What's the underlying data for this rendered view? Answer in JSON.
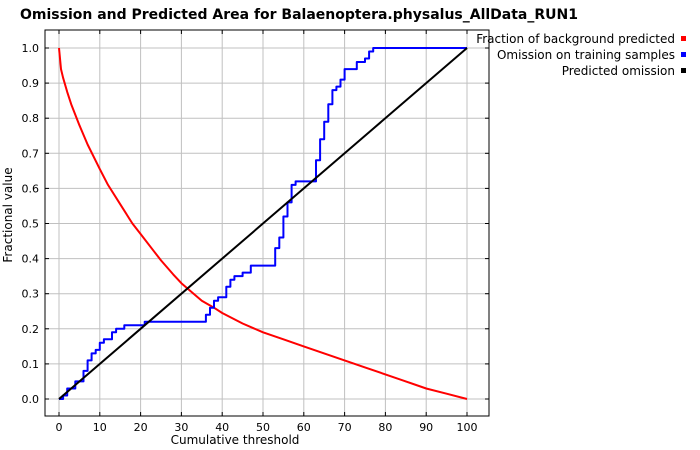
{
  "chart_data": {
    "type": "line",
    "title": "Omission and Predicted Area for Balaenoptera.physalus_AllData_RUN1",
    "xlabel": "Cumulative threshold",
    "ylabel": "Fractional value",
    "xlim": [
      0,
      100
    ],
    "ylim": [
      0,
      1
    ],
    "xticks": [
      "0",
      "10",
      "20",
      "30",
      "40",
      "50",
      "60",
      "70",
      "80",
      "90",
      "100"
    ],
    "yticks": [
      "0.0",
      "0.1",
      "0.2",
      "0.3",
      "0.4",
      "0.5",
      "0.6",
      "0.7",
      "0.8",
      "0.9",
      "1.0"
    ],
    "grid": true,
    "legend_position": "top-right, outside plot",
    "series": [
      {
        "name": "Fraction of background predicted",
        "color": "#ff0000",
        "x": [
          0,
          0.5,
          1,
          2,
          3,
          5,
          7,
          10,
          12,
          15,
          18,
          20,
          23,
          25,
          28,
          30,
          33,
          35,
          38,
          40,
          45,
          50,
          55,
          60,
          65,
          70,
          75,
          80,
          85,
          90,
          95,
          100
        ],
        "y": [
          1.0,
          0.94,
          0.915,
          0.875,
          0.84,
          0.78,
          0.725,
          0.655,
          0.61,
          0.555,
          0.5,
          0.47,
          0.425,
          0.395,
          0.355,
          0.33,
          0.3,
          0.28,
          0.26,
          0.245,
          0.215,
          0.19,
          0.17,
          0.15,
          0.13,
          0.11,
          0.09,
          0.07,
          0.05,
          0.03,
          0.015,
          0.0
        ]
      },
      {
        "name": "Omission on training samples",
        "color": "#0000ff",
        "step": true,
        "x": [
          0,
          1,
          2,
          4,
          6,
          7,
          8,
          9,
          10,
          11,
          13,
          14,
          15,
          16,
          17,
          21,
          35,
          36,
          37,
          38,
          39,
          40,
          41,
          42,
          43,
          45,
          47,
          52,
          53,
          54,
          55,
          56,
          57,
          58,
          62,
          63,
          64,
          65,
          66,
          67,
          68,
          69,
          70,
          71,
          72,
          73,
          74,
          75,
          76,
          77,
          78,
          100
        ],
        "y": [
          0.0,
          0.01,
          0.03,
          0.05,
          0.08,
          0.11,
          0.13,
          0.14,
          0.16,
          0.17,
          0.19,
          0.2,
          0.2,
          0.21,
          0.21,
          0.22,
          0.22,
          0.24,
          0.26,
          0.28,
          0.29,
          0.29,
          0.32,
          0.34,
          0.35,
          0.36,
          0.38,
          0.38,
          0.43,
          0.46,
          0.52,
          0.56,
          0.61,
          0.62,
          0.62,
          0.68,
          0.74,
          0.79,
          0.84,
          0.88,
          0.89,
          0.91,
          0.94,
          0.94,
          0.94,
          0.96,
          0.96,
          0.97,
          0.99,
          1.0,
          1.0,
          1.0
        ]
      },
      {
        "name": "Predicted omission",
        "color": "#000000",
        "x": [
          0,
          100
        ],
        "y": [
          0,
          1
        ]
      }
    ]
  }
}
